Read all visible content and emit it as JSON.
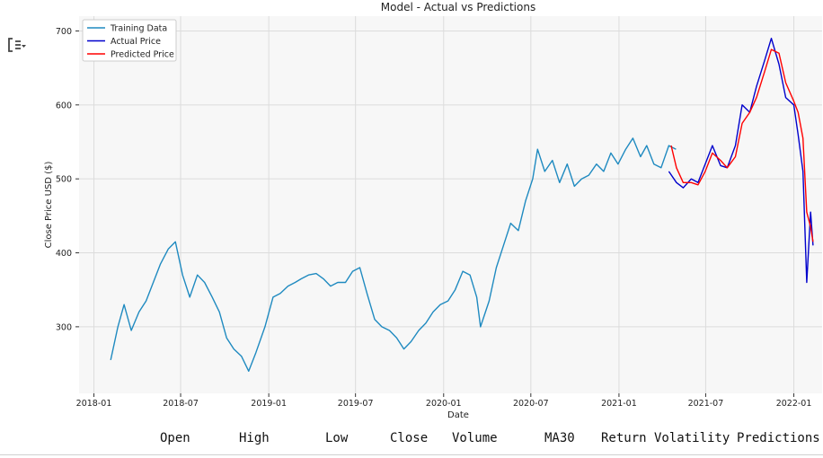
{
  "toolbar": {
    "collapse_icon": "collapse-output-icon"
  },
  "chart_data": {
    "type": "line",
    "title": "Model - Actual vs Predictions",
    "xlabel": "Date",
    "ylabel": "Close Price USD ($)",
    "xlim": [
      "2017-12-01",
      "2022-03-01"
    ],
    "ylim": [
      210,
      720
    ],
    "x_ticks": [
      "2018-01",
      "2018-07",
      "2019-01",
      "2019-07",
      "2020-01",
      "2020-07",
      "2021-01",
      "2021-07",
      "2022-01"
    ],
    "y_ticks": [
      300,
      400,
      500,
      600,
      700
    ],
    "grid": true,
    "legend_position": "top-left",
    "series": [
      {
        "name": "Training Data",
        "color": "#1f8ac0",
        "x": [
          "2018-02-05",
          "2018-02-20",
          "2018-03-05",
          "2018-03-20",
          "2018-04-05",
          "2018-04-20",
          "2018-05-05",
          "2018-05-20",
          "2018-06-05",
          "2018-06-20",
          "2018-07-05",
          "2018-07-20",
          "2018-08-05",
          "2018-08-20",
          "2018-09-05",
          "2018-09-20",
          "2018-10-05",
          "2018-10-20",
          "2018-11-05",
          "2018-11-20",
          "2018-12-05",
          "2018-12-24",
          "2019-01-10",
          "2019-01-25",
          "2019-02-10",
          "2019-02-25",
          "2019-03-10",
          "2019-03-25",
          "2019-04-10",
          "2019-04-25",
          "2019-05-10",
          "2019-05-25",
          "2019-06-10",
          "2019-06-25",
          "2019-07-10",
          "2019-07-25",
          "2019-08-10",
          "2019-08-25",
          "2019-09-10",
          "2019-09-25",
          "2019-10-10",
          "2019-10-25",
          "2019-11-10",
          "2019-11-25",
          "2019-12-10",
          "2019-12-25",
          "2020-01-10",
          "2020-01-25",
          "2020-02-10",
          "2020-02-25",
          "2020-03-10",
          "2020-03-18",
          "2020-04-05",
          "2020-04-20",
          "2020-05-05",
          "2020-05-20",
          "2020-06-05",
          "2020-06-20",
          "2020-07-05",
          "2020-07-15",
          "2020-07-30",
          "2020-08-15",
          "2020-08-30",
          "2020-09-15",
          "2020-09-30",
          "2020-10-15",
          "2020-10-30",
          "2020-11-15",
          "2020-11-30",
          "2020-12-15",
          "2020-12-30",
          "2021-01-15",
          "2021-01-30",
          "2021-02-15",
          "2021-02-28",
          "2021-03-15",
          "2021-03-30",
          "2021-04-15",
          "2021-04-30"
        ],
        "values": [
          255,
          300,
          330,
          295,
          320,
          335,
          360,
          385,
          405,
          415,
          370,
          340,
          370,
          360,
          340,
          320,
          285,
          270,
          260,
          240,
          265,
          300,
          340,
          345,
          355,
          360,
          365,
          370,
          372,
          365,
          355,
          360,
          360,
          375,
          380,
          345,
          310,
          300,
          295,
          285,
          270,
          280,
          295,
          305,
          320,
          330,
          335,
          350,
          375,
          370,
          340,
          300,
          335,
          380,
          410,
          440,
          430,
          470,
          500,
          540,
          510,
          525,
          495,
          520,
          490,
          500,
          505,
          520,
          510,
          535,
          520,
          540,
          555,
          530,
          545,
          520,
          515,
          545,
          540
        ]
      },
      {
        "name": "Actual Price",
        "color": "#0000cc",
        "x": [
          "2021-04-15",
          "2021-05-01",
          "2021-05-15",
          "2021-06-01",
          "2021-06-15",
          "2021-06-30",
          "2021-07-15",
          "2021-08-01",
          "2021-08-15",
          "2021-09-01",
          "2021-09-15",
          "2021-10-01",
          "2021-10-15",
          "2021-11-01",
          "2021-11-15",
          "2021-12-01",
          "2021-12-15",
          "2022-01-01",
          "2022-01-10",
          "2022-01-20",
          "2022-01-28",
          "2022-02-05",
          "2022-02-10"
        ],
        "values": [
          510,
          495,
          488,
          500,
          495,
          520,
          545,
          518,
          515,
          545,
          600,
          590,
          625,
          660,
          690,
          655,
          610,
          600,
          560,
          510,
          360,
          455,
          410
        ]
      },
      {
        "name": "Predicted Price",
        "color": "#ff0000",
        "x": [
          "2021-04-20",
          "2021-05-01",
          "2021-05-15",
          "2021-06-01",
          "2021-06-15",
          "2021-06-30",
          "2021-07-15",
          "2021-08-01",
          "2021-08-15",
          "2021-09-01",
          "2021-09-15",
          "2021-10-01",
          "2021-10-15",
          "2021-11-01",
          "2021-11-15",
          "2021-12-01",
          "2021-12-15",
          "2022-01-01",
          "2022-01-10",
          "2022-01-20",
          "2022-01-28",
          "2022-02-05",
          "2022-02-10"
        ],
        "values": [
          545,
          515,
          495,
          495,
          492,
          510,
          535,
          525,
          515,
          530,
          575,
          590,
          610,
          645,
          675,
          670,
          630,
          605,
          590,
          555,
          455,
          435,
          415
        ]
      }
    ]
  },
  "columns": [
    "Open",
    "High",
    "Low",
    "Close",
    "Volume",
    "MA30",
    "Return",
    "Volatility",
    "Predictions"
  ]
}
